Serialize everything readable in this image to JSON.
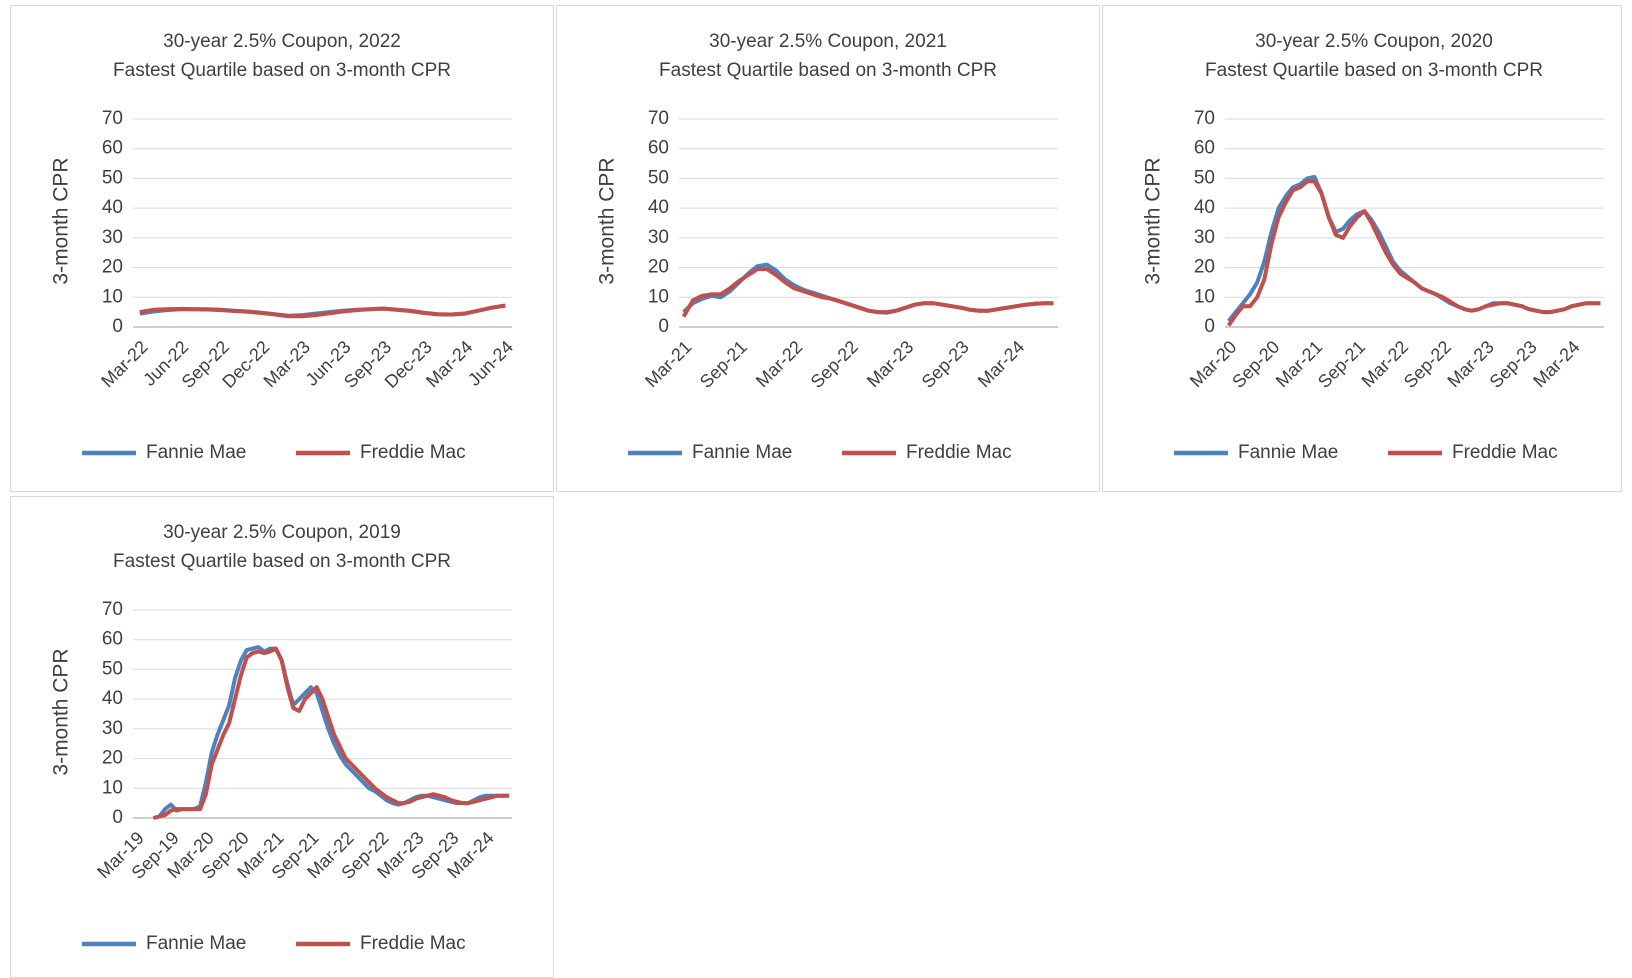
{
  "chart_data": [
    {
      "type": "line",
      "title": "30-year 2.5% Coupon, 2022",
      "subtitle": "Fastest Quartile based on 3-month CPR",
      "ylabel": "3-month CPR",
      "categories": [
        "Mar-22",
        null,
        null,
        "Jun-22",
        null,
        null,
        "Sep-22",
        null,
        null,
        "Dec-22",
        null,
        null,
        "Mar-23",
        null,
        null,
        "Jun-23",
        null,
        null,
        "Sep-23",
        null,
        null,
        "Dec-23",
        null,
        null,
        "Mar-24",
        null,
        null,
        "Jun-24"
      ],
      "series": [
        {
          "name": "Fannie Mae",
          "color": "#4f81bd",
          "values": [
            4.5,
            5.2,
            5.7,
            6,
            6,
            6,
            5.8,
            5.5,
            5.2,
            4.8,
            4.3,
            3.8,
            4,
            4.5,
            5,
            5.5,
            5.8,
            6,
            6.2,
            5.8,
            5.5,
            4.8,
            4.3,
            4.2,
            4.5,
            5.5,
            6.5,
            7.2
          ]
        },
        {
          "name": "Freddie Mac",
          "color": "#c0504d",
          "values": [
            5,
            5.8,
            6,
            6.1,
            6,
            5.9,
            5.7,
            5.4,
            5.1,
            4.7,
            4.2,
            3.6,
            3.6,
            4,
            4.6,
            5.2,
            5.7,
            6,
            6.2,
            5.8,
            5.4,
            4.7,
            4.3,
            4.2,
            4.5,
            5.5,
            6.5,
            7.2
          ]
        }
      ],
      "ylim": [
        0,
        70
      ],
      "yticks": [
        0,
        10,
        20,
        30,
        40,
        50,
        60,
        70
      ],
      "grid": true
    },
    {
      "type": "line",
      "title": "30-year 2.5% Coupon, 2021",
      "subtitle": "Fastest Quartile based on 3-month CPR",
      "ylabel": "3-month CPR",
      "categories": [
        "Mar-21",
        null,
        null,
        null,
        null,
        null,
        "Sep-21",
        null,
        null,
        null,
        null,
        null,
        "Mar-22",
        null,
        null,
        null,
        null,
        null,
        "Sep-22",
        null,
        null,
        null,
        null,
        null,
        "Mar-23",
        null,
        null,
        null,
        null,
        null,
        "Sep-23",
        null,
        null,
        null,
        null,
        null,
        "Mar-24",
        null,
        null,
        null,
        null
      ],
      "series": [
        {
          "name": "Fannie Mae",
          "color": "#4f81bd",
          "values": [
            5,
            8,
            9.5,
            10.5,
            10,
            12,
            15,
            18,
            20.5,
            21,
            19,
            16,
            14,
            12.5,
            11.5,
            10.5,
            9.5,
            8.5,
            7.5,
            6.5,
            5.5,
            5,
            4.8,
            5.5,
            6.5,
            7.5,
            8,
            8,
            7.5,
            7,
            6.5,
            5.8,
            5.5,
            5.5,
            6,
            6.5,
            7,
            7.5,
            7.8,
            8,
            8
          ]
        },
        {
          "name": "Freddie Mac",
          "color": "#c0504d",
          "values": [
            3.5,
            9,
            10.5,
            11,
            11,
            13,
            15.5,
            17.5,
            19.5,
            19.5,
            17.5,
            15,
            13,
            12,
            11,
            10,
            9.5,
            8.5,
            7.5,
            6.5,
            5.5,
            5,
            5,
            5.5,
            6.5,
            7.5,
            8,
            8,
            7.5,
            7,
            6.5,
            5.8,
            5.5,
            5.5,
            6,
            6.5,
            7,
            7.5,
            7.8,
            8,
            8
          ]
        }
      ],
      "ylim": [
        0,
        70
      ],
      "yticks": [
        0,
        10,
        20,
        30,
        40,
        50,
        60,
        70
      ],
      "grid": true
    },
    {
      "type": "line",
      "title": "30-year 2.5% Coupon, 2020",
      "subtitle": "Fastest Quartile based on 3-month CPR",
      "ylabel": "3-month CPR",
      "categories": [
        "Mar-20",
        null,
        null,
        null,
        null,
        null,
        "Sep-20",
        null,
        null,
        null,
        null,
        null,
        "Mar-21",
        null,
        null,
        null,
        null,
        null,
        "Sep-21",
        null,
        null,
        null,
        null,
        null,
        "Mar-22",
        null,
        null,
        null,
        null,
        null,
        "Sep-22",
        null,
        null,
        null,
        null,
        null,
        "Mar-23",
        null,
        null,
        null,
        null,
        null,
        "Sep-23",
        null,
        null,
        null,
        null,
        null,
        "Mar-24",
        null,
        null,
        null,
        null
      ],
      "series": [
        {
          "name": "Fannie Mae",
          "color": "#4f81bd",
          "values": [
            2,
            5,
            8,
            11,
            15,
            22,
            32,
            40,
            44,
            47,
            48,
            50,
            50.5,
            45,
            37,
            32,
            33,
            36,
            38,
            39,
            36,
            32,
            27,
            22,
            19,
            17,
            15,
            13,
            12,
            11,
            9.5,
            8,
            7,
            6,
            5.5,
            6,
            7,
            8,
            8,
            8,
            7.5,
            7,
            6,
            5.5,
            5,
            5,
            5.5,
            6,
            7,
            7.5,
            8,
            8,
            8
          ]
        },
        {
          "name": "Freddie Mac",
          "color": "#c0504d",
          "values": [
            0.5,
            4,
            7,
            7,
            10,
            16,
            28,
            37,
            42,
            46,
            47,
            49,
            49,
            45,
            37,
            31,
            30,
            34,
            37,
            39,
            35,
            30,
            25,
            21,
            18,
            16.5,
            15,
            13,
            12,
            11,
            10,
            8.5,
            7,
            6,
            5.5,
            6,
            7,
            7.5,
            8,
            8,
            7.5,
            7,
            6,
            5.5,
            5,
            5,
            5.5,
            6,
            7,
            7.5,
            8,
            8,
            8
          ]
        }
      ],
      "ylim": [
        0,
        70
      ],
      "yticks": [
        0,
        10,
        20,
        30,
        40,
        50,
        60,
        70
      ],
      "grid": true
    },
    {
      "type": "line",
      "title": "30-year 2.5% Coupon, 2019",
      "subtitle": "Fastest Quartile based on 3-month CPR",
      "ylabel": "3-month CPR",
      "categories": [
        "Mar-19",
        null,
        null,
        null,
        null,
        null,
        "Sep-19",
        null,
        null,
        null,
        null,
        null,
        "Mar-20",
        null,
        null,
        null,
        null,
        null,
        "Sep-20",
        null,
        null,
        null,
        null,
        null,
        "Mar-21",
        null,
        null,
        null,
        null,
        null,
        "Sep-21",
        null,
        null,
        null,
        null,
        null,
        "Mar-22",
        null,
        null,
        null,
        null,
        null,
        "Sep-22",
        null,
        null,
        null,
        null,
        null,
        "Mar-23",
        null,
        null,
        null,
        null,
        null,
        "Sep-23",
        null,
        null,
        null,
        null,
        null,
        "Mar-24",
        null,
        null,
        null,
        null
      ],
      "series": [
        {
          "name": "Fannie Mae",
          "color": "#4f81bd",
          "values": [
            null,
            null,
            null,
            0,
            0.5,
            3,
            4.5,
            2.5,
            3,
            3,
            3,
            4,
            12,
            22,
            28,
            33,
            38,
            47,
            53,
            56.5,
            57,
            57.5,
            56,
            57,
            57,
            53,
            45,
            38,
            40,
            42,
            44,
            42,
            36,
            30,
            25,
            21,
            18,
            16,
            14,
            12,
            10,
            9,
            7.5,
            6,
            5,
            4.5,
            5,
            6,
            7,
            7.5,
            7.5,
            7,
            6.5,
            6,
            5.5,
            5,
            5,
            5,
            6,
            7,
            7.5,
            7.5,
            7.5,
            7.5,
            7.5
          ]
        },
        {
          "name": "Freddie Mac",
          "color": "#c0504d",
          "values": [
            null,
            null,
            null,
            0,
            0.5,
            1,
            2.5,
            3,
            3,
            3,
            3,
            3,
            8,
            18,
            23,
            28,
            32,
            40,
            48,
            54,
            55.5,
            56,
            55.5,
            56,
            57,
            53,
            44,
            37,
            36,
            40,
            42,
            44,
            40,
            34,
            28,
            24,
            20,
            18,
            16,
            14,
            12,
            10,
            8.5,
            7,
            6,
            5,
            5,
            5.5,
            6.5,
            7,
            7.5,
            8,
            7.5,
            7,
            6,
            5.5,
            5,
            5,
            5.5,
            6,
            6.5,
            7,
            7.5,
            7.5,
            7.5
          ]
        }
      ],
      "ylim": [
        0,
        70
      ],
      "yticks": [
        0,
        10,
        20,
        30,
        40,
        50,
        60,
        70
      ],
      "grid": true
    }
  ]
}
